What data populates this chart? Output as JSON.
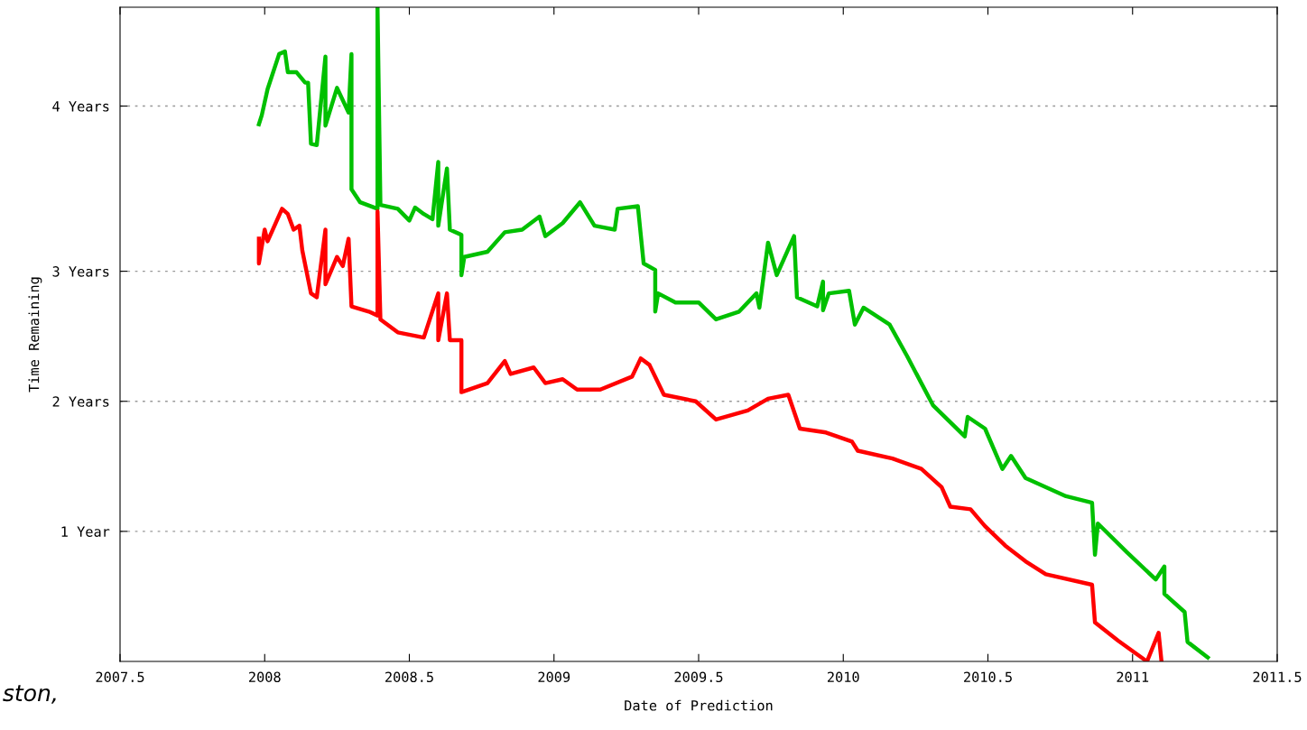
{
  "chart_data": {
    "type": "line",
    "xlabel": "Date of Prediction",
    "ylabel": "Time Remaining",
    "xlim": [
      2007.5,
      2011.5
    ],
    "xticks": [
      2007.5,
      2008,
      2008.5,
      2009,
      2009.5,
      2010,
      2010.5,
      2011,
      2011.5
    ],
    "ylim": [
      0,
      5.03
    ],
    "yticks": [
      {
        "value": 1,
        "label": "1 Year"
      },
      {
        "value": 2,
        "label": "2 Years"
      },
      {
        "value": 3,
        "label": "3 Years"
      },
      {
        "value": 4.27,
        "label": "4 Years"
      }
    ],
    "grid": "y",
    "legend": false,
    "marker": "none",
    "line_style": "solid",
    "annotations": [
      "ston,"
    ],
    "series": [
      {
        "color": "#00c000",
        "x": [
          2007.98,
          2007.99,
          2008.01,
          2008.05,
          2008.07,
          2008.08,
          2008.11,
          2008.14,
          2008.15,
          2008.16,
          2008.18,
          2008.21,
          2008.21,
          2008.25,
          2008.29,
          2008.3,
          2008.3,
          2008.33,
          2008.39,
          2008.39,
          2008.4,
          2008.46,
          2008.5,
          2008.52,
          2008.55,
          2008.58,
          2008.6,
          2008.6,
          2008.63,
          2008.64,
          2008.68,
          2008.68,
          2008.69,
          2008.77,
          2008.83,
          2008.89,
          2008.95,
          2008.97,
          2009.03,
          2009.09,
          2009.14,
          2009.21,
          2009.22,
          2009.29,
          2009.31,
          2009.35,
          2009.35,
          2009.36,
          2009.42,
          2009.5,
          2009.56,
          2009.64,
          2009.7,
          2009.71,
          2009.74,
          2009.77,
          2009.83,
          2009.84,
          2009.91,
          2009.93,
          2009.93,
          2009.95,
          2010.02,
          2010.04,
          2010.07,
          2010.16,
          2010.22,
          2010.31,
          2010.42,
          2010.43,
          2010.49,
          2010.55,
          2010.58,
          2010.63,
          2010.77,
          2010.86,
          2010.87,
          2010.88,
          2010.98,
          2011.08,
          2011.11,
          2011.11,
          2011.18,
          2011.19,
          2011.26
        ],
        "values": [
          4.13,
          4.2,
          4.4,
          4.67,
          4.69,
          4.53,
          4.53,
          4.45,
          4.45,
          3.98,
          3.97,
          4.65,
          4.12,
          4.41,
          4.22,
          4.67,
          3.63,
          3.53,
          3.48,
          5.03,
          3.51,
          3.48,
          3.39,
          3.49,
          3.44,
          3.4,
          3.84,
          3.35,
          3.79,
          3.32,
          3.28,
          2.97,
          3.11,
          3.15,
          3.3,
          3.32,
          3.42,
          3.27,
          3.37,
          3.53,
          3.35,
          3.32,
          3.48,
          3.5,
          3.06,
          3.01,
          2.69,
          2.83,
          2.76,
          2.76,
          2.63,
          2.69,
          2.83,
          2.72,
          3.22,
          2.97,
          3.27,
          2.8,
          2.73,
          2.92,
          2.7,
          2.83,
          2.85,
          2.59,
          2.72,
          2.59,
          2.35,
          1.97,
          1.73,
          1.88,
          1.79,
          1.48,
          1.58,
          1.41,
          1.27,
          1.22,
          0.82,
          1.06,
          0.84,
          0.63,
          0.73,
          0.52,
          0.38,
          0.15,
          0.03
        ]
      },
      {
        "color": "#ff0000",
        "x": [
          2007.98,
          2007.98,
          2008.0,
          2008.01,
          2008.06,
          2008.08,
          2008.1,
          2008.12,
          2008.13,
          2008.16,
          2008.18,
          2008.21,
          2008.21,
          2008.25,
          2008.27,
          2008.29,
          2008.3,
          2008.36,
          2008.39,
          2008.39,
          2008.4,
          2008.46,
          2008.55,
          2008.6,
          2008.6,
          2008.63,
          2008.64,
          2008.68,
          2008.68,
          2008.77,
          2008.83,
          2008.85,
          2008.93,
          2008.97,
          2009.03,
          2009.08,
          2009.16,
          2009.27,
          2009.3,
          2009.33,
          2009.38,
          2009.49,
          2009.56,
          2009.67,
          2009.74,
          2009.81,
          2009.85,
          2009.94,
          2010.03,
          2010.05,
          2010.17,
          2010.27,
          2010.34,
          2010.37,
          2010.44,
          2010.49,
          2010.56,
          2010.63,
          2010.7,
          2010.86,
          2010.87,
          2010.95,
          2011.05,
          2011.09,
          2011.1
        ],
        "values": [
          3.25,
          3.06,
          3.32,
          3.23,
          3.48,
          3.44,
          3.32,
          3.35,
          3.16,
          2.83,
          2.8,
          3.32,
          2.9,
          3.11,
          3.04,
          3.25,
          2.73,
          2.69,
          2.66,
          3.46,
          2.63,
          2.53,
          2.49,
          2.83,
          2.47,
          2.83,
          2.47,
          2.47,
          2.07,
          2.14,
          2.31,
          2.21,
          2.26,
          2.14,
          2.17,
          2.09,
          2.09,
          2.19,
          2.33,
          2.28,
          2.05,
          2.0,
          1.86,
          1.93,
          2.02,
          2.05,
          1.79,
          1.76,
          1.69,
          1.62,
          1.56,
          1.48,
          1.34,
          1.19,
          1.17,
          1.04,
          0.89,
          0.77,
          0.67,
          0.59,
          0.3,
          0.16,
          0.0,
          0.22,
          0.0
        ]
      }
    ]
  }
}
